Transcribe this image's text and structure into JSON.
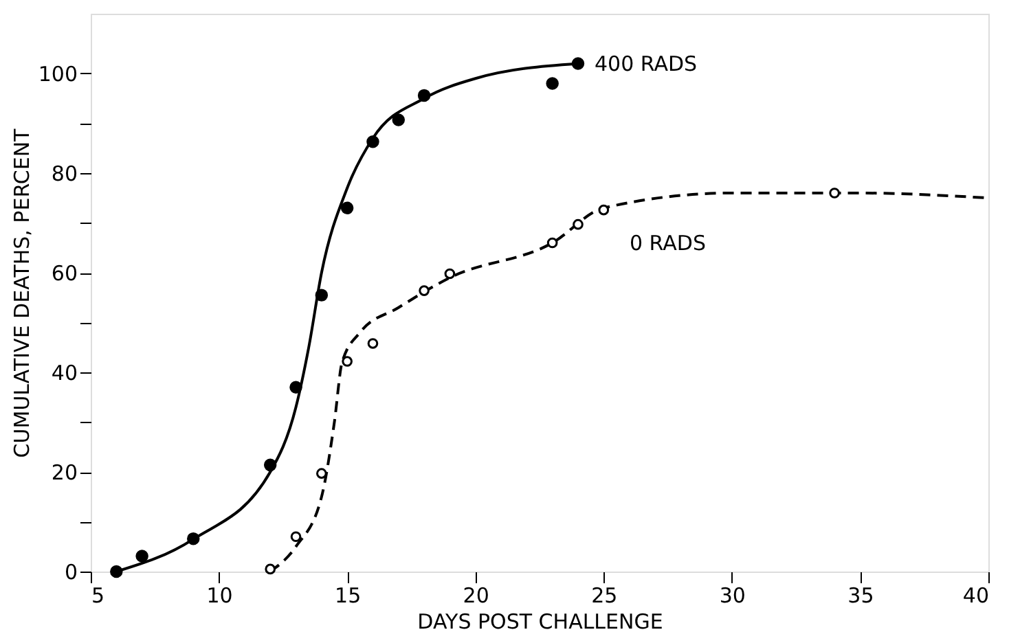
{
  "chart_data": {
    "type": "scatter",
    "xlabel": "DAYS POST CHALLENGE",
    "ylabel": "CUMULATIVE DEATHS, PERCENT",
    "xlim": [
      5,
      40
    ],
    "xticks": [
      5,
      10,
      15,
      20,
      25,
      30,
      35,
      40
    ],
    "ylim": [
      0,
      112
    ],
    "yticks": [
      0,
      {
        "value": 10,
        "label": null
      },
      20,
      {
        "value": 30,
        "label": null
      },
      40,
      {
        "value": 50,
        "label": null
      },
      60,
      {
        "value": 70,
        "label": null
      },
      80,
      {
        "value": 90,
        "label": null
      },
      100
    ],
    "grid": false,
    "series": [
      {
        "marker": "circle",
        "color": "#000000",
        "x": [
          6,
          7,
          9,
          12,
          13,
          14,
          15,
          16,
          17,
          18,
          23,
          24
        ],
        "values": [
          0,
          3.1,
          6.6,
          21.4,
          37,
          55.5,
          73,
          86.3,
          90.7,
          95.6,
          98,
          102
        ]
      },
      {
        "marker": "circle",
        "color": "#000000",
        "x": [
          12,
          13,
          14,
          15,
          16,
          18,
          19,
          23,
          24,
          25,
          34
        ],
        "values": [
          0.5,
          7,
          19.7,
          42.2,
          45.8,
          56.4,
          59.8,
          66,
          69.7,
          72.6,
          76
        ]
      },
      {
        "type": "line",
        "marker": "none",
        "line_style": "solid",
        "color": "#000000",
        "x": [
          6,
          9,
          12,
          13,
          13.5,
          14,
          15,
          16,
          18,
          20,
          24
        ],
        "values": [
          0,
          6.5,
          20,
          33,
          45,
          60,
          77,
          87,
          95,
          99,
          102
        ]
      },
      {
        "type": "line",
        "marker": "none",
        "line_style": "dashed",
        "color": "#000000",
        "x": [
          12,
          13,
          14,
          14.5,
          14.8,
          15.5,
          17,
          19,
          23,
          25,
          30,
          35,
          40
        ],
        "values": [
          0,
          5,
          15,
          30,
          42,
          48,
          53,
          59,
          66,
          73,
          76,
          76,
          75
        ]
      }
    ],
    "annotations": [
      {
        "text": "400 RADS",
        "x": 24,
        "y": 102
      },
      "0 RADS"
    ]
  }
}
